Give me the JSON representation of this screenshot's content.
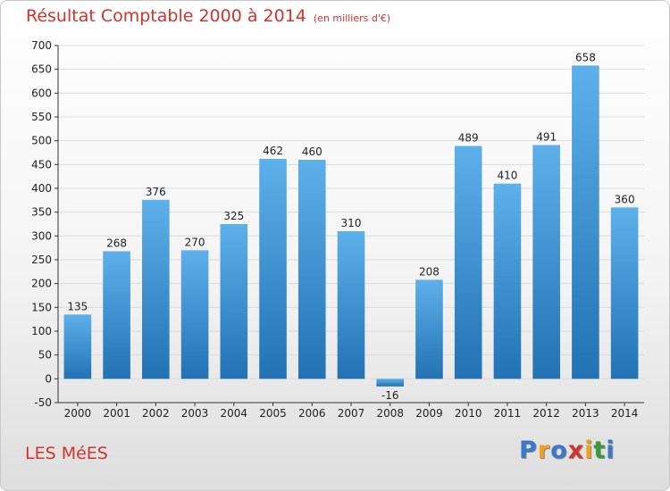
{
  "title": "Résultat Comptable 2000 à 2014",
  "title_unit": "(en milliers d'€)",
  "place_name": "LES MéES",
  "logo": {
    "letters": [
      "P",
      "r",
      "o",
      "x",
      "i",
      "t",
      "i"
    ],
    "colors": [
      "#3a78c8",
      "#f0a020",
      "#3a78c8",
      "#d0342c",
      "#f0a020",
      "#3a9a3a",
      "#3a78c8"
    ]
  },
  "colors": {
    "title": "#d0342c",
    "bar_light": "#5eb0ea",
    "bar_dark": "#2272b4",
    "grid": "#dcdcdc"
  },
  "chart_data": {
    "type": "bar",
    "title": "Résultat Comptable 2000 à 2014",
    "subtitle": "(en milliers d'€)",
    "xlabel": "",
    "ylabel": "",
    "categories": [
      "2000",
      "2001",
      "2002",
      "2003",
      "2004",
      "2005",
      "2006",
      "2007",
      "2008",
      "2009",
      "2010",
      "2011",
      "2012",
      "2013",
      "2014"
    ],
    "values": [
      135,
      268,
      376,
      270,
      325,
      462,
      460,
      310,
      -16,
      208,
      489,
      410,
      491,
      658,
      360
    ],
    "data_labels": [
      "135",
      "268",
      "376",
      "270",
      "325",
      "462",
      "460",
      "310",
      "-16",
      "208",
      "489",
      "410",
      "491",
      "658",
      "360"
    ],
    "ylim": [
      -50,
      700
    ],
    "yticks": [
      "-50",
      "0",
      "50",
      "100",
      "150",
      "200",
      "250",
      "300",
      "350",
      "400",
      "450",
      "500",
      "550",
      "600",
      "650",
      "700"
    ],
    "grid": true,
    "legend": "none"
  }
}
